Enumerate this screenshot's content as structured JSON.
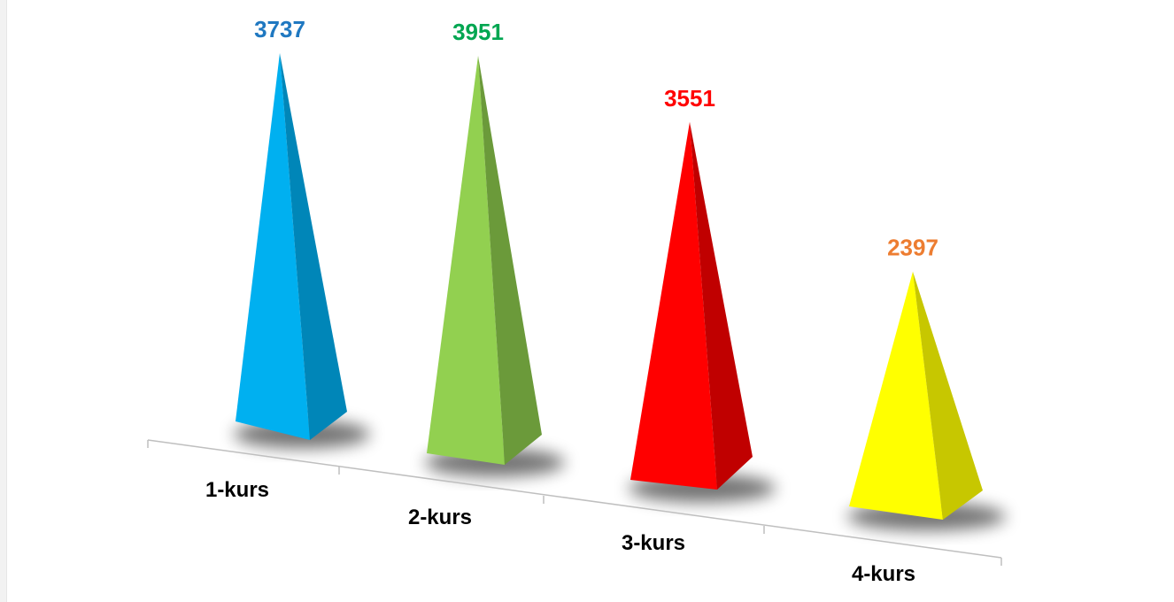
{
  "chart_data": {
    "type": "bar",
    "style": "3d-pyramid",
    "categories": [
      "1-kurs",
      "2-kurs",
      "3-kurs",
      "4-kurs"
    ],
    "values": [
      3737,
      3951,
      3551,
      2397
    ],
    "colors": {
      "fills": [
        "#00b0f0",
        "#92d050",
        "#ff0000",
        "#ffff00"
      ],
      "side_fills": [
        "#0086b8",
        "#6b9a3a",
        "#c00000",
        "#c7c700"
      ],
      "label_colors": [
        "#1f78c1",
        "#00a651",
        "#ff0000",
        "#ed7d31"
      ]
    },
    "title": "",
    "xlabel": "",
    "ylabel": "",
    "grid": false,
    "legend": "none"
  }
}
